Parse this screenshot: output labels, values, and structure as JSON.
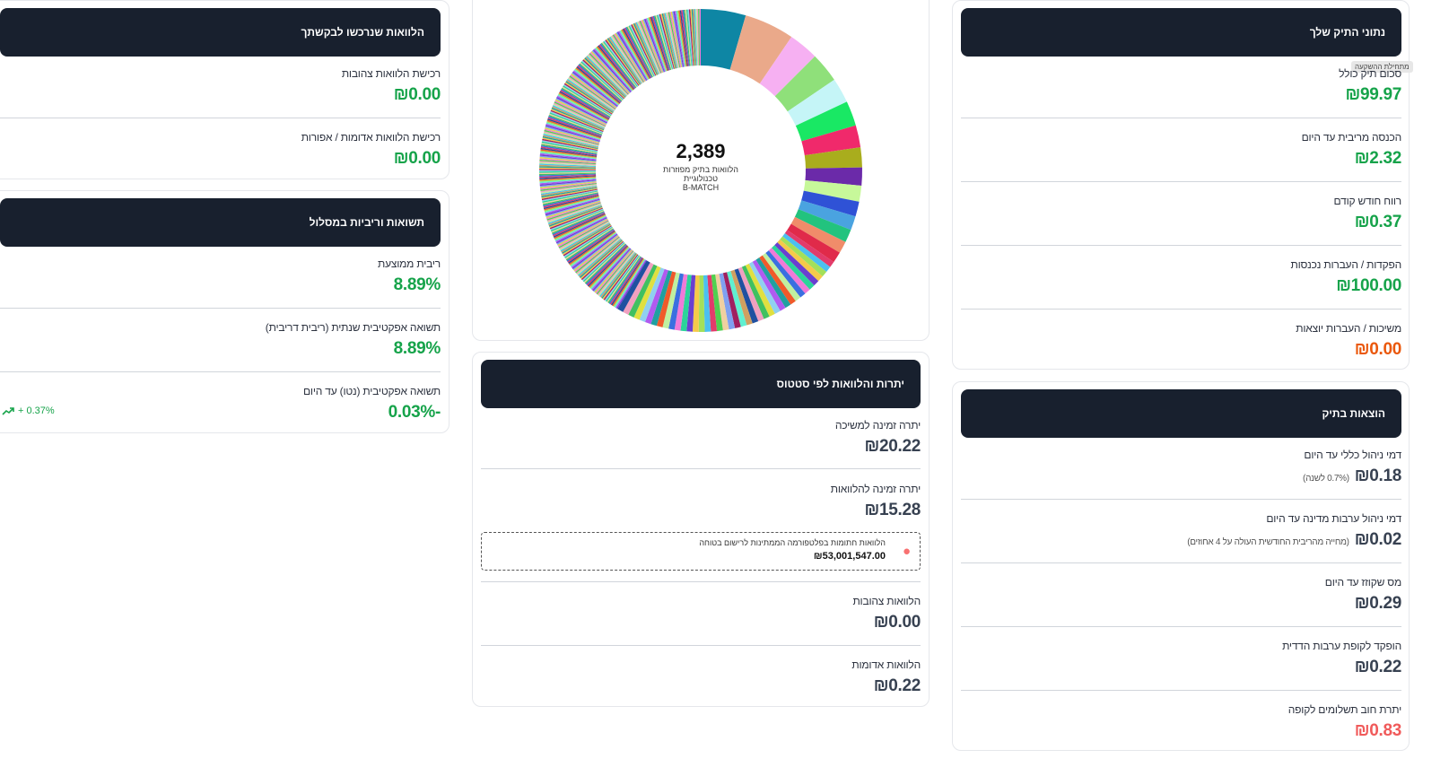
{
  "right_top": {
    "header": "נתוני התיק שלך",
    "tooltip": "מתחילת ההשקעה",
    "rows": [
      {
        "label": "סכום תיק כולל",
        "value": "₪99.97"
      },
      {
        "label": "הכנסה מריבית עד היום",
        "value": "₪2.32"
      },
      {
        "label": "רווח חודש קודם",
        "value": "₪0.37"
      },
      {
        "label": "הפקדות / העברות נכנסות",
        "value": "₪100.00"
      },
      {
        "label": "משיכות / העברות יוצאות",
        "value": "₪0.00"
      }
    ]
  },
  "right_bottom": {
    "header": "הוצאות בתיק",
    "rows": [
      {
        "label": "דמי ניהול כללי עד היום",
        "value": "₪0.18",
        "note": "(0.7% לשנה)"
      },
      {
        "label": "דמי ניהול ערבות מדינה עד היום",
        "value": "₪0.02",
        "note": "(מחייה מהריבית החודשית העולה על 4 אחוזים)"
      },
      {
        "label": "מס שקוזז עד היום",
        "value": "₪0.29"
      },
      {
        "label": "הופקד לקופת ערבות הדדית",
        "value": "₪0.22"
      },
      {
        "label": "יתרת חוב תשלומים לקופה",
        "value": "₪0.83"
      }
    ]
  },
  "center_top": {
    "count": "2,389",
    "caption_1": "הלוואות בתיק מפוזרות",
    "caption_2": "טכנולוגיית",
    "caption_3": "B-MATCH"
  },
  "center_bottom": {
    "header": "יתרות והלוואות לפי סטטוס",
    "rows": [
      {
        "label": "יתרה זמינה למשיכה",
        "value": "₪20.22"
      },
      {
        "label": "יתרה זמינה להלוואות",
        "value": "₪15.28"
      }
    ],
    "info": {
      "text": "הלוואות חתומות בפלטפורמה הממתינות לרישום בטוחה",
      "value": "₪53,001,547.00"
    },
    "rows2": [
      {
        "label": "הלוואות צהובות",
        "value": "₪0.00"
      },
      {
        "label": "הלוואות אדומות",
        "value": "₪0.22"
      }
    ]
  },
  "left_top": {
    "header": "הלוואות שנרכשו לבקשתך",
    "rows": [
      {
        "label": "רכישת הלוואות צהובות",
        "value": "₪0.00"
      },
      {
        "label": "רכישת הלוואות אדומות / אפורות",
        "value": "₪0.00"
      }
    ]
  },
  "left_bottom": {
    "header": "תשואות וריביות במסלול",
    "rows": [
      {
        "label": "ריבית ממוצעת",
        "value": "8.89%"
      },
      {
        "label": "תשואה אפקטיבית שנתית (ריבית דריבית)",
        "value": "8.89%"
      },
      {
        "label": "תשואה אפקטיבית (נטו) עד היום",
        "value": "-0.03%"
      }
    ],
    "trend": "+ 0.37%"
  }
}
